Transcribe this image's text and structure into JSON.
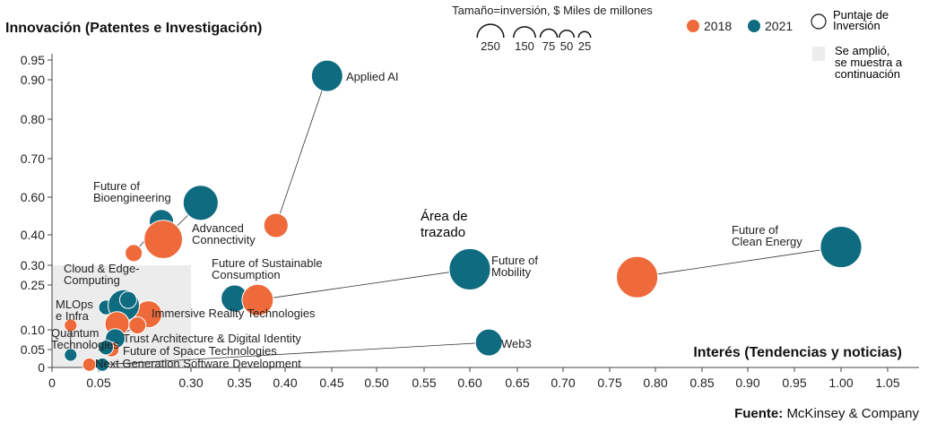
{
  "chart_data": {
    "type": "scatter",
    "title": "Innovación (Patentes e Investigación)",
    "xlabel": "Interés (Tendencias y noticias)",
    "ylabel": "Innovación (Patentes e Investigación)",
    "source_label": "Fuente:",
    "source_name": "McKinsey & Company",
    "plot_area_label": "Área de\ntrazado",
    "size_legend_title": "Tamaño=inversión, $ Miles de millones",
    "size_legend_values": [
      250,
      150,
      75,
      50,
      25
    ],
    "legend": {
      "items": [
        {
          "label": "2018",
          "color": "#ee6a3a"
        },
        {
          "label": "2021",
          "color": "#0f6b80"
        }
      ],
      "score_label": "Puntaje de\nInversión",
      "expanded_label": "Se amplió,\nse muestra a\ncontinuación"
    },
    "colors": {
      "y2018": "#ee6a3a",
      "y2021": "#0f6b80",
      "expand_box": "#ececec"
    },
    "x_ticks": [
      "0",
      "0.05",
      "0.30",
      "0.35",
      "0.40",
      "0.45",
      "0.50",
      "0.55",
      "0.60",
      "0.65",
      "0.70",
      "0.75",
      "0.80",
      "0.85",
      "0.90",
      "0.95",
      "1.00",
      "1.05"
    ],
    "y_ticks": [
      "0",
      "0.05",
      "0.10",
      "0.25",
      "0.30",
      "0.40",
      "0.60",
      "0.70",
      "0.80",
      "0.90",
      "0.95"
    ],
    "expanded_region": {
      "x": [
        0,
        0.3
      ],
      "y": [
        0,
        0.3
      ]
    },
    "series": [
      {
        "name": "Applied AI",
        "label": "Applied AI",
        "p2018": {
          "x": 0.39,
          "y": 0.45,
          "inv": 75
        },
        "p2021": {
          "x": 0.445,
          "y": 0.91,
          "inv": 150
        }
      },
      {
        "name": "Future of Bioengineering",
        "label": "Future of\nBioengineering",
        "p2018": {
          "x": 0.145,
          "y": 0.34,
          "inv": 25
        },
        "p2021": {
          "x": 0.22,
          "y": 0.47,
          "inv": 75
        }
      },
      {
        "name": "Advanced Connectivity",
        "label": "Advanced\nConnectivity",
        "p2018": {
          "x": 0.225,
          "y": 0.385,
          "inv": 250
        },
        "p2021": {
          "x": 0.31,
          "y": 0.57,
          "inv": 200
        }
      },
      {
        "name": "Future of Sustainable Consumption",
        "label": "Future of Sustainable\nConsumption",
        "p2018": {
          "x": 0.37,
          "y": 0.2,
          "inv": 150
        },
        "p2021": {
          "x": 0.345,
          "y": 0.205,
          "inv": 100
        }
      },
      {
        "name": "Future of Mobility",
        "label": "Future of\nMobility",
        "p2018": {
          "x": 0.37,
          "y": 0.2,
          "inv": 150
        },
        "p2021": {
          "x": 0.6,
          "y": 0.29,
          "inv": 300
        }
      },
      {
        "name": "Future of Clean Energy",
        "label": "Future of\nClean Energy",
        "p2018": {
          "x": 0.78,
          "y": 0.27,
          "inv": 300
        },
        "p2021": {
          "x": 1.0,
          "y": 0.36,
          "inv": 300
        }
      },
      {
        "name": "Web3",
        "label": "Web3",
        "p2018": {
          "x": 0.06,
          "y": 0.008,
          "inv": 10
        },
        "p2021": {
          "x": 0.62,
          "y": 0.068,
          "inv": 100
        }
      },
      {
        "name": "Cloud & Edge Computing",
        "label": "Cloud & Edge-\nComputing",
        "p2018": {
          "x": 0.07,
          "y": 0.175,
          "inv": 15
        },
        "p2021": {
          "x": 0.07,
          "y": 0.175,
          "inv": 15
        }
      },
      {
        "name": "Immersive Reality Technologies",
        "label": "Immersive Reality Technologies",
        "p2018": {
          "x": 0.185,
          "y": 0.152,
          "inv": 100
        },
        "p2021": {
          "x": 0.118,
          "y": 0.182,
          "inv": 150
        }
      },
      {
        "name": "MLOps e Infra",
        "label": "MLOps\ne Infra",
        "p2018": {
          "x": 0.1,
          "y": 0.12,
          "inv": 75
        },
        "p2021": {
          "x": 0.13,
          "y": 0.2,
          "inv": 25
        }
      },
      {
        "name": "Trust Architecture & Digital Identity",
        "label": "Trust Architecture & Digital Identity",
        "p2018": {
          "x": 0.155,
          "y": 0.115,
          "inv": 25
        },
        "p2021": {
          "x": 0.095,
          "y": 0.078,
          "inv": 40
        }
      },
      {
        "name": "Future of Space Technologies",
        "label": "Future of Space Technologies",
        "p2018": {
          "x": 0.085,
          "y": 0.05,
          "inv": 15
        },
        "p2021": {
          "x": 0.07,
          "y": 0.055,
          "inv": 15
        }
      },
      {
        "name": "Quantum Technologies",
        "label": "Quantum\nTechnologies",
        "p2018": {
          "x": 0.02,
          "y": 0.115,
          "inv": 8
        },
        "p2021": {
          "x": 0.02,
          "y": 0.035,
          "inv": 8
        }
      },
      {
        "name": "Next Generation Software Development",
        "label": "Next Generation Software Development",
        "p2018": {
          "x": 0.04,
          "y": 0.008,
          "inv": 10
        },
        "p2021": {
          "x": 0.06,
          "y": 0.008,
          "inv": 10
        }
      }
    ]
  }
}
